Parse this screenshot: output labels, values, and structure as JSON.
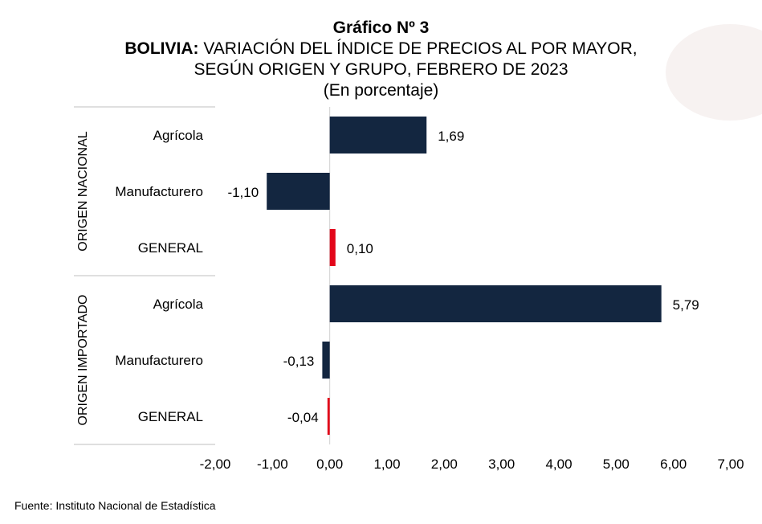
{
  "title": "Gráfico Nº 3",
  "subtitle_bold": "BOLIVIA:",
  "subtitle_rest": " VARIACIÓN DEL ÍNDICE DE PRECIOS AL POR MAYOR,",
  "subtitle_line2": "SEGÚN ORIGEN Y GRUPO, FEBRERO DE 2023",
  "unit": "(En porcentaje)",
  "source": "Fuente: Instituto Nacional de Estadística",
  "colors": {
    "main": "#132640",
    "general": "#e3061a"
  },
  "chart_data": {
    "type": "bar",
    "orientation": "horizontal",
    "groups": [
      {
        "name": "ORIGEN NACIONAL",
        "categories": [
          "Agrícola",
          "Manufacturero",
          "GENERAL"
        ],
        "values": [
          1.69,
          -1.1,
          0.1
        ],
        "labels": [
          "1,69",
          "-1,10",
          "0,10"
        ]
      },
      {
        "name": "ORIGEN IMPORTADO",
        "categories": [
          "Agrícola",
          "Manufacturero",
          "GENERAL"
        ],
        "values": [
          5.79,
          -0.13,
          -0.04
        ],
        "labels": [
          "5,79",
          "-0,13",
          "-0,04"
        ]
      }
    ],
    "xlim": [
      -2,
      7
    ],
    "xticks": [
      -2,
      -1,
      0,
      1,
      2,
      3,
      4,
      5,
      6,
      7
    ],
    "xtick_labels": [
      "-2,00",
      "-1,00",
      "0,00",
      "1,00",
      "2,00",
      "3,00",
      "4,00",
      "5,00",
      "6,00",
      "7,00"
    ],
    "grid": false,
    "legend": "none"
  }
}
